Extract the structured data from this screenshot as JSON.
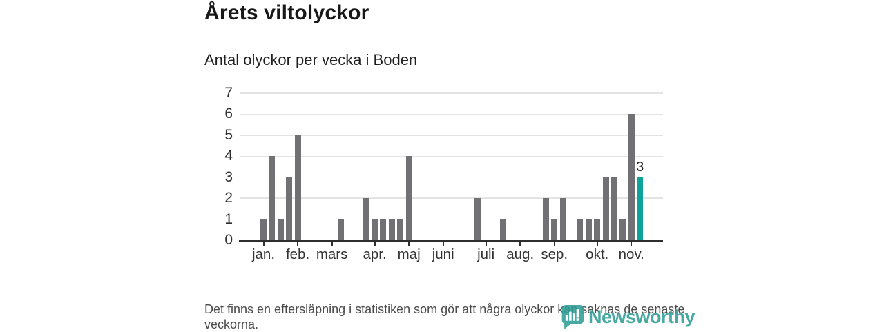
{
  "title": "Årets viltolyckor",
  "subtitle": "Antal olyckor per vecka i Boden",
  "footer": {
    "note": "Det finns en eftersläpning i statistiken som gör att några olyckor kan saknas de senaste veckorna."
  },
  "logo": {
    "name": "Newsworthy",
    "icon": "newsworthy-speech-bubble-barchart-icon",
    "color": "#2f9e96"
  },
  "colors": {
    "bar": "#707075",
    "highlight": "#0da39b",
    "axis": "#2e2e2e",
    "grid": "#e3e3e3",
    "text": "#333333"
  },
  "chart_data": {
    "type": "bar",
    "title": "Årets viltolyckor",
    "subtitle": "Antal olyckor per vecka i Boden",
    "x_unit": "vecka (week)",
    "ylabel": "",
    "xlabel": "",
    "ylim": [
      0,
      7
    ],
    "y_ticks": [
      "0",
      "1",
      "2",
      "3",
      "4",
      "5",
      "6",
      "7"
    ],
    "grid": true,
    "x_tick_labels": [
      "jan.",
      "feb.",
      "mars",
      "apr.",
      "maj",
      "juni",
      "juli",
      "aug.",
      "sep.",
      "okt.",
      "nov."
    ],
    "x_tick_week_index": [
      0,
      4,
      8,
      13,
      17,
      21,
      26,
      30,
      34,
      39,
      43
    ],
    "values": [
      1,
      4,
      1,
      3,
      5,
      0,
      0,
      0,
      0,
      1,
      0,
      0,
      2,
      1,
      1,
      1,
      1,
      4,
      0,
      0,
      0,
      0,
      0,
      0,
      0,
      2,
      0,
      0,
      1,
      0,
      0,
      0,
      0,
      2,
      1,
      2,
      0,
      1,
      1,
      1,
      3,
      3,
      1,
      6,
      3
    ],
    "highlight_index": 44,
    "highlight_label": "3"
  }
}
